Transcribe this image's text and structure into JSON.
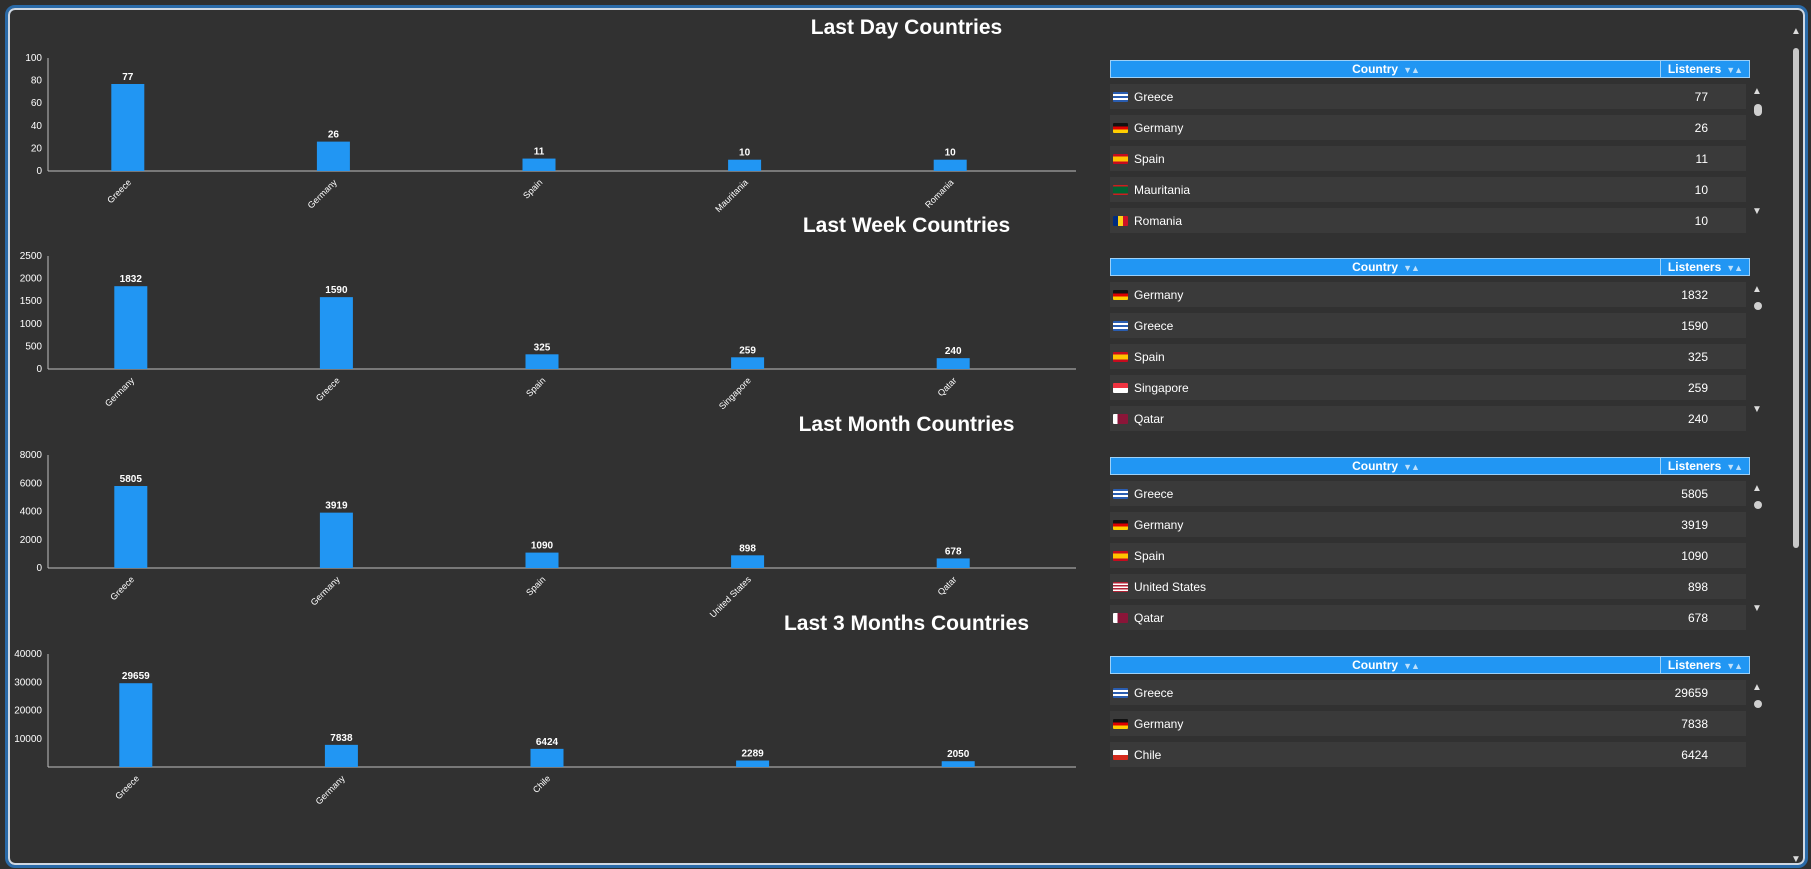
{
  "sections": [
    {
      "title": "Last Day Countries",
      "chart_data": {
        "type": "bar",
        "categories": [
          "Greece",
          "Germany",
          "Spain",
          "Mauritania",
          "Romania"
        ],
        "values": [
          77,
          26,
          11,
          10,
          10
        ],
        "ylim": [
          0,
          100
        ],
        "yticks": [
          0,
          20,
          40,
          60,
          80,
          100
        ],
        "title": "Last Day Countries"
      },
      "table": {
        "headers": {
          "country": "Country",
          "listeners": "Listeners"
        },
        "rows": [
          {
            "country": "Greece",
            "listeners": "77",
            "flag": "greece-flag-icon"
          },
          {
            "country": "Germany",
            "listeners": "26",
            "flag": "germany-flag-icon"
          },
          {
            "country": "Spain",
            "listeners": "11",
            "flag": "spain-flag-icon"
          },
          {
            "country": "Mauritania",
            "listeners": "10",
            "flag": "mauritania-flag-icon"
          },
          {
            "country": "Romania",
            "listeners": "10",
            "flag": "romania-flag-icon"
          }
        ]
      }
    },
    {
      "title": "Last Week Countries",
      "chart_data": {
        "type": "bar",
        "categories": [
          "Germany",
          "Greece",
          "Spain",
          "Singapore",
          "Qatar"
        ],
        "values": [
          1832,
          1590,
          325,
          259,
          240
        ],
        "ylim": [
          0,
          2500
        ],
        "yticks": [
          0,
          500,
          1000,
          1500,
          2000,
          2500
        ],
        "title": "Last Week Countries"
      },
      "table": {
        "headers": {
          "country": "Country",
          "listeners": "Listeners"
        },
        "rows": [
          {
            "country": "Germany",
            "listeners": "1832",
            "flag": "germany-flag-icon"
          },
          {
            "country": "Greece",
            "listeners": "1590",
            "flag": "greece-flag-icon"
          },
          {
            "country": "Spain",
            "listeners": "325",
            "flag": "spain-flag-icon"
          },
          {
            "country": "Singapore",
            "listeners": "259",
            "flag": "singapore-flag-icon"
          },
          {
            "country": "Qatar",
            "listeners": "240",
            "flag": "qatar-flag-icon"
          }
        ]
      }
    },
    {
      "title": "Last Month Countries",
      "chart_data": {
        "type": "bar",
        "categories": [
          "Greece",
          "Germany",
          "Spain",
          "United States",
          "Qatar"
        ],
        "values": [
          5805,
          3919,
          1090,
          898,
          678
        ],
        "ylim": [
          0,
          8000
        ],
        "yticks": [
          0,
          2000,
          4000,
          6000,
          8000
        ],
        "title": "Last Month Countries"
      },
      "table": {
        "headers": {
          "country": "Country",
          "listeners": "Listeners"
        },
        "rows": [
          {
            "country": "Greece",
            "listeners": "5805",
            "flag": "greece-flag-icon"
          },
          {
            "country": "Germany",
            "listeners": "3919",
            "flag": "germany-flag-icon"
          },
          {
            "country": "Spain",
            "listeners": "1090",
            "flag": "spain-flag-icon"
          },
          {
            "country": "United States",
            "listeners": "898",
            "flag": "us-flag-icon"
          },
          {
            "country": "Qatar",
            "listeners": "678",
            "flag": "qatar-flag-icon"
          }
        ]
      }
    },
    {
      "title": "Last 3 Months Countries",
      "chart_data": {
        "type": "bar",
        "categories": [
          "Greece",
          "Germany",
          "Chile",
          "",
          ""
        ],
        "values": [
          29659,
          7838,
          6424,
          2289,
          2050
        ],
        "ylim": [
          0,
          40000
        ],
        "yticks": [
          10000,
          20000,
          30000,
          40000
        ],
        "title": "Last 3 Months Countries"
      },
      "table": {
        "headers": {
          "country": "Country",
          "listeners": "Listeners"
        },
        "rows": [
          {
            "country": "Greece",
            "listeners": "29659",
            "flag": "greece-flag-icon"
          },
          {
            "country": "Germany",
            "listeners": "7838",
            "flag": "germany-flag-icon"
          },
          {
            "country": "Chile",
            "listeners": "6424",
            "flag": "chile-flag-icon"
          }
        ]
      }
    }
  ],
  "sort_glyph": "▼▲",
  "scroll_up": "▲",
  "scroll_down": "▼",
  "colors": {
    "bar": "#2196f3",
    "header": "#2196f3",
    "background": "#313131",
    "row": "#3a3a3a"
  }
}
